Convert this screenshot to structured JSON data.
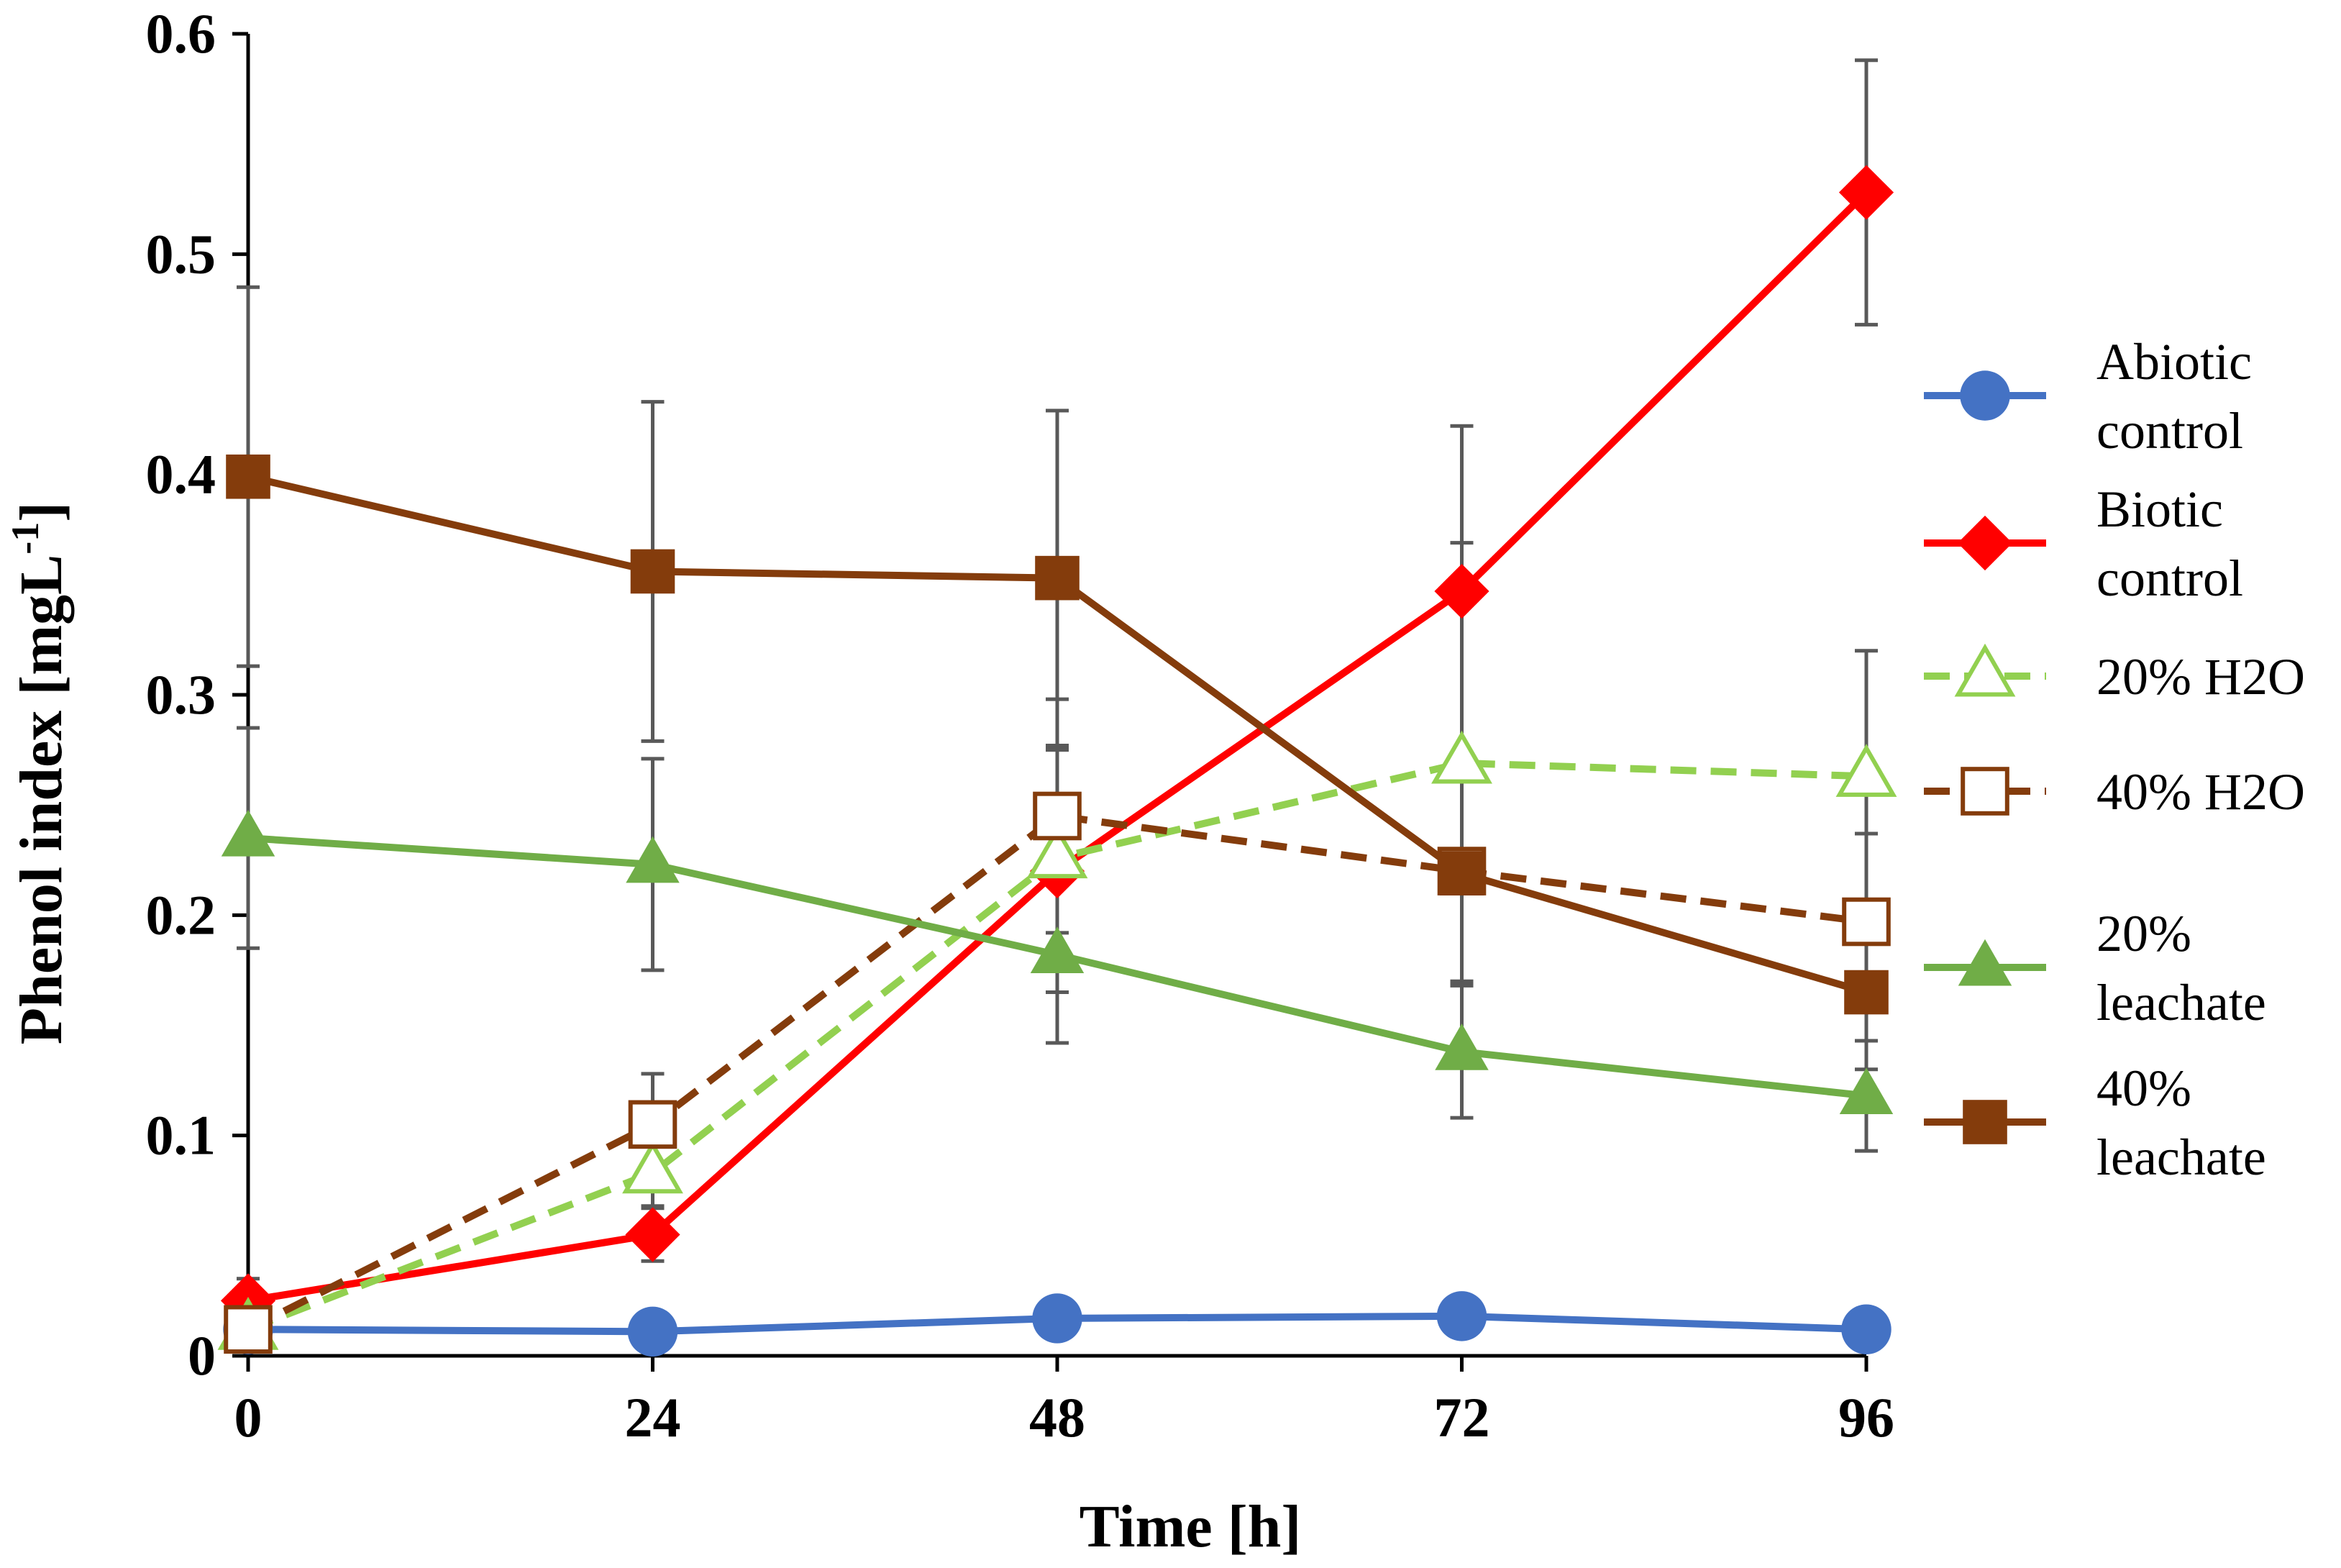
{
  "chart_data": {
    "type": "line",
    "title": "",
    "xlabel": "Time [h]",
    "ylabel": "Phenol index [mgL",
    "ylabel_superscript": "-1",
    "ylabel_suffix": "]",
    "x": [
      0,
      24,
      48,
      72,
      96
    ],
    "x_tick_labels": [
      "0",
      "24",
      "48",
      "72",
      "96"
    ],
    "y_tick_labels": [
      "0",
      "0.1",
      "0.2",
      "0.3",
      "0.4",
      "0.5",
      "0.6"
    ],
    "xlim": [
      0,
      96
    ],
    "ylim": [
      0,
      0.6
    ],
    "grid": false,
    "legend_position": "right",
    "series": [
      {
        "name": "Abiotic control",
        "legend_lines": [
          "Abiotic",
          "control"
        ],
        "color": "#4472C4",
        "marker": "circle",
        "marker_fill": "filled",
        "dash": "solid",
        "values": [
          0.012,
          0.011,
          0.017,
          0.018,
          0.012
        ],
        "errors": [
          0,
          0,
          0,
          0,
          0
        ]
      },
      {
        "name": "Biotic control",
        "legend_lines": [
          "Biotic",
          "control"
        ],
        "color": "#FF0000",
        "marker": "diamond",
        "marker_fill": "filled",
        "dash": "solid",
        "values": [
          0.025,
          0.055,
          0.22,
          0.347,
          0.528
        ],
        "errors": [
          0.01,
          0.012,
          0.055,
          0.075,
          0.06
        ]
      },
      {
        "name": "20% H2O",
        "legend_lines": [
          "20% H2O"
        ],
        "color": "#92D050",
        "marker": "triangle",
        "marker_fill": "hollow",
        "dash": "dashed",
        "values": [
          0.012,
          0.083,
          0.226,
          0.269,
          0.263
        ],
        "errors": [
          0.005,
          0.015,
          0.05,
          0.1,
          0.057
        ]
      },
      {
        "name": "40% H2O",
        "legend_lines": [
          "40% H2O"
        ],
        "color": "#843C0C",
        "marker": "square",
        "marker_fill": "hollow",
        "dash": "dashed",
        "values": [
          0.012,
          0.105,
          0.245,
          0.22,
          0.197
        ],
        "errors": [
          0.005,
          0.023,
          0.053,
          0.05,
          0.04
        ]
      },
      {
        "name": "20% leachate",
        "legend_lines": [
          "20%",
          "leachate"
        ],
        "color": "#70AD47",
        "marker": "triangle",
        "marker_fill": "filled",
        "dash": "solid",
        "values": [
          0.235,
          0.223,
          0.182,
          0.138,
          0.118
        ],
        "errors": [
          0.05,
          0.048,
          0.04,
          0.03,
          0.025
        ]
      },
      {
        "name": "40% leachate",
        "legend_lines": [
          "40%",
          "leachate"
        ],
        "color": "#843C0C",
        "marker": "square",
        "marker_fill": "filled",
        "dash": "solid",
        "values": [
          0.399,
          0.356,
          0.353,
          0.219,
          0.165
        ],
        "errors": [
          0.086,
          0.077,
          0.076,
          0.05,
          0.035
        ]
      }
    ]
  }
}
